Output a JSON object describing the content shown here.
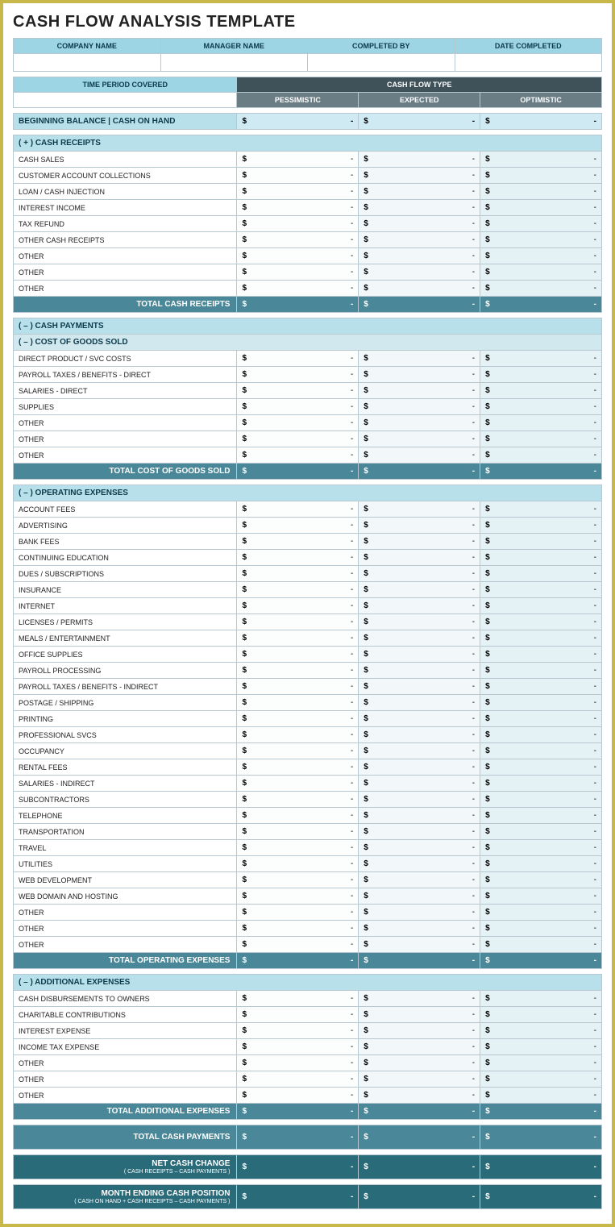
{
  "title": "CASH FLOW ANALYSIS TEMPLATE",
  "info_headers": [
    "COMPANY NAME",
    "MANAGER NAME",
    "COMPLETED BY",
    "DATE COMPLETED"
  ],
  "info_values": [
    "",
    "",
    "",
    ""
  ],
  "period_label": "TIME PERIOD COVERED",
  "flow_type_label": "CASH FLOW TYPE",
  "flow_types": [
    "PESSIMISTIC",
    "EXPECTED",
    "OPTIMISTIC"
  ],
  "beginning_label": "BEGINNING BALANCE  |  CASH ON HAND",
  "money_sym": "$",
  "money_dash": "-",
  "receipts": {
    "header": "( + )  CASH RECEIPTS",
    "rows": [
      "CASH SALES",
      "CUSTOMER ACCOUNT COLLECTIONS",
      "LOAN / CASH INJECTION",
      "INTEREST INCOME",
      "TAX REFUND",
      "OTHER CASH RECEIPTS",
      "OTHER",
      "OTHER",
      "OTHER"
    ],
    "total": "TOTAL CASH RECEIPTS"
  },
  "payments_header": "( – )  CASH PAYMENTS",
  "cogs": {
    "header": "( – )  COST OF GOODS SOLD",
    "rows": [
      "DIRECT PRODUCT / SVC COSTS",
      "PAYROLL TAXES / BENEFITS - DIRECT",
      "SALARIES - DIRECT",
      "SUPPLIES",
      "OTHER",
      "OTHER",
      "OTHER"
    ],
    "total": "TOTAL COST OF GOODS SOLD"
  },
  "opex": {
    "header": "( – )  OPERATING EXPENSES",
    "rows": [
      "ACCOUNT FEES",
      "ADVERTISING",
      "BANK FEES",
      "CONTINUING EDUCATION",
      "DUES / SUBSCRIPTIONS",
      "INSURANCE",
      "INTERNET",
      "LICENSES / PERMITS",
      "MEALS / ENTERTAINMENT",
      "OFFICE SUPPLIES",
      "PAYROLL PROCESSING",
      "PAYROLL TAXES / BENEFITS - INDIRECT",
      "POSTAGE / SHIPPING",
      "PRINTING",
      "PROFESSIONAL SVCS",
      "OCCUPANCY",
      "RENTAL FEES",
      "SALARIES - INDIRECT",
      "SUBCONTRACTORS",
      "TELEPHONE",
      "TRANSPORTATION",
      "TRAVEL",
      "UTILITIES",
      "WEB DEVELOPMENT",
      "WEB DOMAIN AND HOSTING",
      "OTHER",
      "OTHER",
      "OTHER"
    ],
    "total": "TOTAL OPERATING EXPENSES"
  },
  "addl": {
    "header": "( – )  ADDITIONAL EXPENSES",
    "rows": [
      "CASH DISBURSEMENTS TO OWNERS",
      "CHARITABLE CONTRIBUTIONS",
      "INTEREST EXPENSE",
      "INCOME TAX EXPENSE",
      "OTHER",
      "OTHER",
      "OTHER"
    ],
    "total": "TOTAL ADDITIONAL EXPENSES"
  },
  "total_payments": "TOTAL CASH PAYMENTS",
  "net_change": {
    "title": "NET CASH CHANGE",
    "sub": "( CASH RECEIPTS – CASH PAYMENTS )"
  },
  "ending": {
    "title": "MONTH ENDING CASH POSITION",
    "sub": "( CASH ON HAND + CASH RECEIPTS – CASH PAYMENTS )"
  },
  "colors": {
    "border_outer": "#c8b84a",
    "header_blue": "#9ed5e5",
    "header_dark": "#3f525a",
    "subheader_gray": "#6a7d85",
    "section_blue": "#b8e0eb",
    "subsection_blue": "#d2e8ef",
    "total_teal": "#4a8798",
    "total_dark": "#2a6b7a",
    "col1_bg": "#fcfdfd",
    "col2_bg": "#f2f8fa",
    "col3_bg": "#e4f1f5",
    "grid": "#b8c8d0"
  }
}
